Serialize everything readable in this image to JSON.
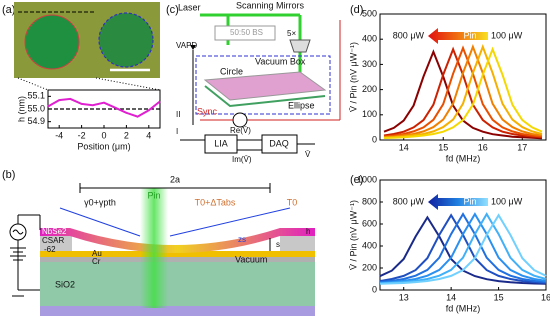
{
  "panel_labels": [
    "(a)",
    "(b)",
    "(c)",
    "(d)",
    "(e)"
  ],
  "chart_data": [
    {
      "type": "line",
      "xlabel": "Position (μm)",
      "ylabel": "h (nm)",
      "xlim": [
        -5,
        5
      ],
      "ylim": [
        54.85,
        55.15
      ],
      "xticks": [
        -4,
        -2,
        0,
        2,
        4
      ],
      "yticks": [
        54.9,
        {
          "value": 55,
          "label": "55.0"
        },
        55.1
      ],
      "reference_line": 55,
      "x": [
        -5,
        -4,
        -3,
        -2,
        -1,
        0,
        1,
        2,
        3,
        4,
        5
      ],
      "series": [
        {
          "color": "#e020d0",
          "values": [
            55.02,
            55.07,
            55.08,
            55.04,
            55.03,
            55.05,
            55.01,
            54.97,
            54.94,
            54.99,
            55.06
          ]
        }
      ]
    },
    {
      "type": "line",
      "xlabel": "fd (MHz)",
      "ylabel": "V̄ / Pin (nV μW⁻¹)",
      "xlim": [
        13.4,
        17.6
      ],
      "ylim": [
        0,
        500
      ],
      "xticks": [
        14,
        15,
        16,
        17
      ],
      "yticks": [
        0,
        100,
        200,
        300,
        400,
        500
      ],
      "annotations": {
        "left": "800 μW",
        "middle": "Pin",
        "right": "100 μW"
      },
      "x": [
        13.5,
        13.75,
        14,
        14.25,
        14.5,
        14.75,
        15,
        15.25,
        15.5,
        15.75,
        16,
        16.25,
        16.5,
        16.75,
        17,
        17.25,
        17.5
      ],
      "series": [
        {
          "color": "#8b0000",
          "values": [
            33,
            48,
            77,
            137,
            252,
            350,
            252,
            137,
            77,
            48,
            33,
            23,
            18,
            13,
            11,
            9,
            7
          ]
        },
        {
          "color": "#cc2200",
          "values": [
            18,
            24,
            33,
            50,
            79,
            140,
            259,
            360,
            259,
            140,
            79,
            50,
            33,
            24,
            18,
            14,
            11
          ]
        },
        {
          "color": "#e85000",
          "values": [
            14,
            18,
            24,
            34,
            50,
            80,
            142,
            263,
            365,
            263,
            142,
            80,
            50,
            34,
            24,
            18,
            14
          ]
        },
        {
          "color": "#f08000",
          "values": [
            11,
            14,
            19,
            24,
            34,
            51,
            81,
            144,
            266,
            370,
            266,
            144,
            81,
            51,
            34,
            24,
            19
          ]
        },
        {
          "color": "#f5b000",
          "values": [
            9,
            11,
            14,
            19,
            24,
            34,
            51,
            81,
            144,
            266,
            370,
            266,
            144,
            81,
            51,
            34,
            24
          ]
        },
        {
          "color": "#f5d800",
          "values": [
            8,
            9,
            11,
            14,
            18,
            24,
            33,
            50,
            79,
            140,
            259,
            360,
            259,
            140,
            79,
            50,
            33
          ]
        }
      ]
    },
    {
      "type": "line",
      "xlabel": "fd (MHz)",
      "ylabel": "V̄ / Pin (nV μW⁻¹)",
      "xlim": [
        12.5,
        16
      ],
      "ylim": [
        0,
        1000
      ],
      "xticks": [
        13,
        14,
        15,
        16
      ],
      "yticks": [
        0,
        200,
        400,
        600,
        800,
        1000
      ],
      "annotations": {
        "left": "800 μW",
        "middle": "Pin",
        "right": "100 μW"
      },
      "x": [
        12.5,
        12.75,
        13,
        13.25,
        13.5,
        13.75,
        14,
        14.25,
        14.5,
        14.75,
        15,
        15.25,
        15.5,
        15.75,
        16
      ],
      "series": [
        {
          "color": "#1a2a8a",
          "values": [
            126,
            176,
            282,
            486,
            660,
            486,
            282,
            176,
            126,
            98,
            81,
            71,
            64,
            59,
            56
          ]
        },
        {
          "color": "#1f4fc0",
          "values": [
            82,
            100,
            128,
            181,
            290,
            501,
            680,
            501,
            290,
            181,
            128,
            100,
            82,
            72,
            64
          ]
        },
        {
          "color": "#2070e0",
          "values": [
            73,
            83,
            100,
            130,
            183,
            294,
            508,
            690,
            508,
            294,
            183,
            130,
            100,
            83,
            73
          ]
        },
        {
          "color": "#2a90f0",
          "values": [
            65,
            73,
            83,
            100,
            130,
            183,
            294,
            508,
            690,
            508,
            294,
            183,
            130,
            100,
            83
          ]
        },
        {
          "color": "#40b0f8",
          "values": [
            60,
            65,
            73,
            83,
            100,
            130,
            183,
            294,
            508,
            690,
            508,
            294,
            183,
            130,
            100
          ]
        },
        {
          "color": "#70d0ff",
          "values": [
            56,
            60,
            64,
            72,
            82,
            100,
            128,
            181,
            290,
            501,
            680,
            501,
            290,
            181,
            128
          ]
        }
      ]
    }
  ],
  "diagram_b": {
    "width": "2a",
    "power": "Pin",
    "gamma": "γ0+γpth",
    "temp_center": "T0+ΔTabs",
    "temp_edge": "T0",
    "flake": "NbSe2",
    "height": "h",
    "deflection": "zs",
    "gap": "s",
    "resist": "CSAR",
    "resist_number": "-62",
    "gold": "Au",
    "chromium": "Cr",
    "vacuum": "Vacuum",
    "substrate": "SiO2"
  },
  "diagram_c": {
    "laser": "Laser",
    "mirrors": "Scanning Mirrors",
    "detector": "VAPD",
    "splitter": "50:50 BS",
    "objective": "5×",
    "box": "Vacuum Box",
    "circle": "Circle",
    "ellipse": "Ellipse",
    "sync": "Sync",
    "real": "Re(V̄)",
    "lia": "LIA",
    "daq": "DAQ",
    "imag": "Im(V̄)",
    "signal": "V̄",
    "switch_2": "II",
    "switch_1": "I"
  }
}
